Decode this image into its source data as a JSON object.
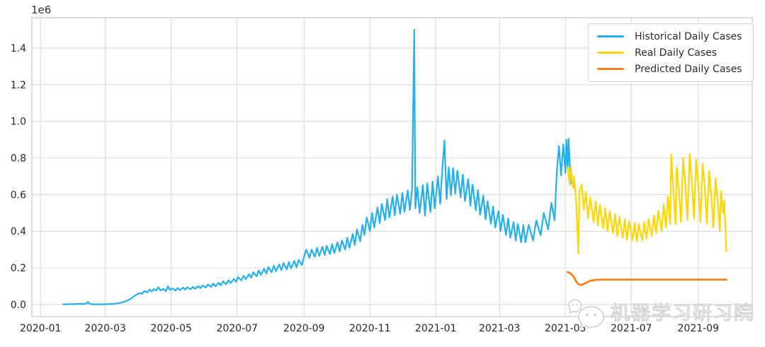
{
  "watermark": {
    "icon": "wechat-chat-bubbles-icon",
    "text": "机器学习研习院"
  },
  "chart_data": {
    "type": "line",
    "title": "",
    "xlabel": "",
    "ylabel": "",
    "grid": true,
    "x_unit": "days since 2020-01-01 (derived from date tick labels)",
    "y_unit_multiplier": "1e6",
    "x_axis": {
      "tick_days": [
        0,
        60,
        121,
        182,
        244,
        305,
        366,
        425,
        486,
        547,
        609
      ],
      "tick_labels": [
        "2020-01",
        "2020-03",
        "2020-05",
        "2020-07",
        "2020-09",
        "2020-11",
        "2021-01",
        "2021-03",
        "2021-05",
        "2021-07",
        "2021-09"
      ],
      "range_days": [
        -8,
        659
      ]
    },
    "y_axis": {
      "offset_text": "1e6",
      "ticks": [
        0.0,
        0.2,
        0.4,
        0.6,
        0.8,
        1.0,
        1.2,
        1.4
      ],
      "tick_labels": [
        "0.0",
        "0.2",
        "0.4",
        "0.6",
        "0.8",
        "1.0",
        "1.2",
        "1.4"
      ],
      "range": [
        -0.066,
        1.566
      ]
    },
    "legend": {
      "position": "upper right",
      "entries": [
        {
          "label": "Historical Daily Cases",
          "color": "#23b0ec"
        },
        {
          "label": "Real Daily Cases",
          "color": "#ffd700"
        },
        {
          "label": "Predicted Daily Cases",
          "color": "#f5821e"
        }
      ]
    },
    "style": {
      "background": "#ffffff",
      "grid_color": "#dcdcdc",
      "spine_color": "#c8c8c8",
      "tick_label_color": "#262626"
    },
    "series": [
      {
        "name": "Historical Daily Cases",
        "color": "#23b0ec",
        "line_width": 2.2,
        "points": [
          [
            21,
            0.001
          ],
          [
            24,
            0.001
          ],
          [
            27,
            0.002
          ],
          [
            30,
            0.002
          ],
          [
            33,
            0.003
          ],
          [
            36,
            0.004
          ],
          [
            39,
            0.003
          ],
          [
            42,
            0.004
          ],
          [
            44,
            0.015
          ],
          [
            45,
            0.005
          ],
          [
            47,
            0.002
          ],
          [
            50,
            0.001
          ],
          [
            53,
            0.001
          ],
          [
            56,
            0.001
          ],
          [
            59,
            0.001
          ],
          [
            62,
            0.002
          ],
          [
            65,
            0.003
          ],
          [
            68,
            0.004
          ],
          [
            71,
            0.006
          ],
          [
            74,
            0.009
          ],
          [
            77,
            0.014
          ],
          [
            80,
            0.021
          ],
          [
            83,
            0.03
          ],
          [
            86,
            0.042
          ],
          [
            89,
            0.055
          ],
          [
            92,
            0.063
          ],
          [
            94,
            0.058
          ],
          [
            96,
            0.074
          ],
          [
            99,
            0.066
          ],
          [
            101,
            0.082
          ],
          [
            103,
            0.071
          ],
          [
            105,
            0.085
          ],
          [
            107,
            0.076
          ],
          [
            109,
            0.094
          ],
          [
            111,
            0.078
          ],
          [
            114,
            0.085
          ],
          [
            116,
            0.072
          ],
          [
            118,
            0.099
          ],
          [
            120,
            0.08
          ],
          [
            122,
            0.088
          ],
          [
            125,
            0.076
          ],
          [
            127,
            0.09
          ],
          [
            129,
            0.079
          ],
          [
            132,
            0.092
          ],
          [
            134,
            0.081
          ],
          [
            136,
            0.094
          ],
          [
            139,
            0.083
          ],
          [
            141,
            0.097
          ],
          [
            143,
            0.086
          ],
          [
            146,
            0.1
          ],
          [
            148,
            0.089
          ],
          [
            150,
            0.104
          ],
          [
            153,
            0.093
          ],
          [
            155,
            0.109
          ],
          [
            158,
            0.097
          ],
          [
            160,
            0.114
          ],
          [
            162,
            0.1
          ],
          [
            165,
            0.119
          ],
          [
            167,
            0.105
          ],
          [
            169,
            0.126
          ],
          [
            172,
            0.111
          ],
          [
            174,
            0.133
          ],
          [
            176,
            0.117
          ],
          [
            179,
            0.14
          ],
          [
            181,
            0.124
          ],
          [
            183,
            0.149
          ],
          [
            186,
            0.132
          ],
          [
            188,
            0.157
          ],
          [
            190,
            0.139
          ],
          [
            193,
            0.166
          ],
          [
            195,
            0.146
          ],
          [
            197,
            0.176
          ],
          [
            200,
            0.154
          ],
          [
            202,
            0.186
          ],
          [
            204,
            0.162
          ],
          [
            207,
            0.195
          ],
          [
            209,
            0.169
          ],
          [
            211,
            0.204
          ],
          [
            214,
            0.176
          ],
          [
            216,
            0.212
          ],
          [
            218,
            0.182
          ],
          [
            221,
            0.219
          ],
          [
            223,
            0.187
          ],
          [
            225,
            0.226
          ],
          [
            228,
            0.192
          ],
          [
            230,
            0.232
          ],
          [
            232,
            0.197
          ],
          [
            235,
            0.238
          ],
          [
            237,
            0.202
          ],
          [
            239,
            0.244
          ],
          [
            242,
            0.215
          ],
          [
            244,
            0.26
          ],
          [
            246,
            0.3
          ],
          [
            249,
            0.255
          ],
          [
            251,
            0.3
          ],
          [
            254,
            0.26
          ],
          [
            256,
            0.31
          ],
          [
            258,
            0.265
          ],
          [
            261,
            0.315
          ],
          [
            263,
            0.27
          ],
          [
            265,
            0.32
          ],
          [
            268,
            0.275
          ],
          [
            270,
            0.33
          ],
          [
            272,
            0.28
          ],
          [
            275,
            0.34
          ],
          [
            277,
            0.29
          ],
          [
            279,
            0.35
          ],
          [
            282,
            0.3
          ],
          [
            284,
            0.365
          ],
          [
            286,
            0.31
          ],
          [
            289,
            0.385
          ],
          [
            291,
            0.325
          ],
          [
            293,
            0.41
          ],
          [
            296,
            0.345
          ],
          [
            298,
            0.435
          ],
          [
            300,
            0.38
          ],
          [
            302,
            0.475
          ],
          [
            305,
            0.4
          ],
          [
            307,
            0.5
          ],
          [
            309,
            0.42
          ],
          [
            312,
            0.53
          ],
          [
            314,
            0.445
          ],
          [
            316,
            0.55
          ],
          [
            319,
            0.46
          ],
          [
            321,
            0.575
          ],
          [
            323,
            0.475
          ],
          [
            326,
            0.59
          ],
          [
            328,
            0.487
          ],
          [
            330,
            0.6
          ],
          [
            333,
            0.495
          ],
          [
            335,
            0.61
          ],
          [
            337,
            0.505
          ],
          [
            340,
            0.623
          ],
          [
            342,
            0.515
          ],
          [
            344,
            0.632
          ],
          [
            346,
            1.5
          ],
          [
            347,
            0.525
          ],
          [
            349,
            0.64
          ],
          [
            351,
            0.5
          ],
          [
            354,
            0.652
          ],
          [
            356,
            0.485
          ],
          [
            358,
            0.662
          ],
          [
            361,
            0.505
          ],
          [
            363,
            0.672
          ],
          [
            365,
            0.525
          ],
          [
            368,
            0.7
          ],
          [
            370,
            0.55
          ],
          [
            372,
            0.735
          ],
          [
            374,
            0.895
          ],
          [
            376,
            0.575
          ],
          [
            378,
            0.75
          ],
          [
            380,
            0.595
          ],
          [
            382,
            0.745
          ],
          [
            384,
            0.605
          ],
          [
            386,
            0.73
          ],
          [
            389,
            0.585
          ],
          [
            391,
            0.71
          ],
          [
            393,
            0.565
          ],
          [
            396,
            0.685
          ],
          [
            398,
            0.54
          ],
          [
            400,
            0.655
          ],
          [
            403,
            0.515
          ],
          [
            405,
            0.625
          ],
          [
            407,
            0.49
          ],
          [
            410,
            0.595
          ],
          [
            412,
            0.465
          ],
          [
            414,
            0.565
          ],
          [
            417,
            0.44
          ],
          [
            419,
            0.535
          ],
          [
            421,
            0.42
          ],
          [
            424,
            0.51
          ],
          [
            426,
            0.4
          ],
          [
            428,
            0.49
          ],
          [
            431,
            0.38
          ],
          [
            433,
            0.47
          ],
          [
            435,
            0.365
          ],
          [
            438,
            0.45
          ],
          [
            440,
            0.35
          ],
          [
            442,
            0.44
          ],
          [
            445,
            0.34
          ],
          [
            447,
            0.435
          ],
          [
            449,
            0.34
          ],
          [
            452,
            0.435
          ],
          [
            456,
            0.35
          ],
          [
            459,
            0.46
          ],
          [
            463,
            0.378
          ],
          [
            466,
            0.5
          ],
          [
            470,
            0.41
          ],
          [
            473,
            0.555
          ],
          [
            476,
            0.46
          ],
          [
            478,
            0.72
          ],
          [
            480,
            0.865
          ],
          [
            482,
            0.705
          ],
          [
            484,
            0.875
          ],
          [
            486,
            0.72
          ],
          [
            487,
            0.9
          ],
          [
            488,
            0.745
          ],
          [
            489,
            0.905
          ],
          [
            490,
            0.76
          ],
          [
            491,
            0.66
          ]
        ]
      },
      {
        "name": "Real Daily Cases",
        "color": "#ffd700",
        "line_width": 2.2,
        "points": [
          [
            488,
            0.75
          ],
          [
            490,
            0.655
          ],
          [
            491,
            0.755
          ],
          [
            493,
            0.635
          ],
          [
            494,
            0.7
          ],
          [
            496,
            0.555
          ],
          [
            498,
            0.28
          ],
          [
            499,
            0.62
          ],
          [
            501,
            0.655
          ],
          [
            503,
            0.52
          ],
          [
            505,
            0.615
          ],
          [
            507,
            0.47
          ],
          [
            509,
            0.585
          ],
          [
            512,
            0.45
          ],
          [
            514,
            0.565
          ],
          [
            516,
            0.43
          ],
          [
            518,
            0.545
          ],
          [
            521,
            0.415
          ],
          [
            523,
            0.525
          ],
          [
            525,
            0.4
          ],
          [
            527,
            0.51
          ],
          [
            530,
            0.39
          ],
          [
            532,
            0.495
          ],
          [
            534,
            0.375
          ],
          [
            536,
            0.48
          ],
          [
            539,
            0.365
          ],
          [
            541,
            0.465
          ],
          [
            543,
            0.355
          ],
          [
            545,
            0.455
          ],
          [
            548,
            0.35
          ],
          [
            550,
            0.445
          ],
          [
            552,
            0.345
          ],
          [
            554,
            0.44
          ],
          [
            557,
            0.35
          ],
          [
            559,
            0.45
          ],
          [
            561,
            0.36
          ],
          [
            563,
            0.465
          ],
          [
            566,
            0.375
          ],
          [
            568,
            0.485
          ],
          [
            570,
            0.39
          ],
          [
            572,
            0.51
          ],
          [
            575,
            0.405
          ],
          [
            577,
            0.545
          ],
          [
            579,
            0.42
          ],
          [
            581,
            0.59
          ],
          [
            583,
            0.44
          ],
          [
            584,
            0.82
          ],
          [
            586,
            0.62
          ],
          [
            588,
            0.44
          ],
          [
            589,
            0.75
          ],
          [
            591,
            0.62
          ],
          [
            593,
            0.45
          ],
          [
            595,
            0.8
          ],
          [
            597,
            0.65
          ],
          [
            599,
            0.46
          ],
          [
            601,
            0.82
          ],
          [
            603,
            0.67
          ],
          [
            605,
            0.47
          ],
          [
            607,
            0.79
          ],
          [
            609,
            0.66
          ],
          [
            611,
            0.45
          ],
          [
            613,
            0.77
          ],
          [
            615,
            0.64
          ],
          [
            617,
            0.44
          ],
          [
            619,
            0.73
          ],
          [
            621,
            0.6
          ],
          [
            623,
            0.42
          ],
          [
            625,
            0.69
          ],
          [
            627,
            0.56
          ],
          [
            629,
            0.4
          ],
          [
            630,
            0.62
          ],
          [
            632,
            0.5
          ],
          [
            633,
            0.57
          ],
          [
            635,
            0.29
          ]
        ]
      },
      {
        "name": "Predicted Daily Cases",
        "color": "#f5821e",
        "line_width": 2.8,
        "points": [
          [
            488,
            0.178
          ],
          [
            491,
            0.17
          ],
          [
            494,
            0.148
          ],
          [
            496,
            0.126
          ],
          [
            498,
            0.112
          ],
          [
            500,
            0.107
          ],
          [
            502,
            0.11
          ],
          [
            505,
            0.118
          ],
          [
            508,
            0.127
          ],
          [
            511,
            0.132
          ],
          [
            515,
            0.135
          ],
          [
            520,
            0.136
          ],
          [
            530,
            0.136
          ],
          [
            545,
            0.136
          ],
          [
            565,
            0.136
          ],
          [
            585,
            0.136
          ],
          [
            605,
            0.136
          ],
          [
            625,
            0.136
          ],
          [
            635,
            0.136
          ]
        ]
      }
    ]
  }
}
